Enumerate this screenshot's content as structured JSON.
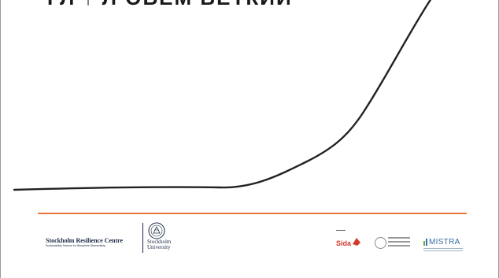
{
  "slide": {
    "title_cut": "ГЛ ↑ Л ОБЕМ ВЕТКИЙ",
    "curve_color": "#222222",
    "divider_color": "#e8743b"
  },
  "footer": {
    "src": {
      "name": "Stockholm Resilience Centre",
      "tagline": "Sustainability Science for Biosphere Stewardship",
      "icon": "src-logo"
    },
    "su": {
      "name_line1": "Stockholm",
      "name_line2": "University",
      "icon": "stockholm-university-seal"
    },
    "partners": [
      {
        "name": "Sida",
        "icon": "sida-logo",
        "color": "#d33a2c"
      },
      {
        "name": "KVA",
        "icon": "kva-logo",
        "color": "#888888"
      },
      {
        "name": "MISTRA",
        "icon": "mistra-logo",
        "color": "#3a6ea5"
      }
    ]
  }
}
